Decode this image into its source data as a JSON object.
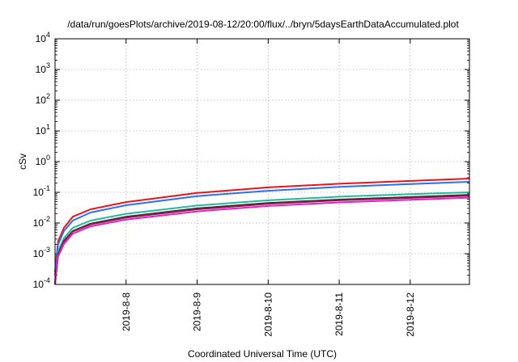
{
  "chart_data": {
    "type": "line",
    "title": "/data/run/goesPlots/archive/2019-08-12/20:00/flux/../bryn/5daysEarthDataAccumulated.plot",
    "xlabel": "Coordinated Universal Time (UTC)",
    "ylabel": "cSv",
    "y_scale": "log",
    "ylim": [
      0.0001,
      10000
    ],
    "y_ticks": [
      {
        "base": "10",
        "exp": "-4"
      },
      {
        "base": "10",
        "exp": "-3"
      },
      {
        "base": "10",
        "exp": "-2"
      },
      {
        "base": "10",
        "exp": "-1"
      },
      {
        "base": "10",
        "exp": "0"
      },
      {
        "base": "10",
        "exp": "1"
      },
      {
        "base": "10",
        "exp": "2"
      },
      {
        "base": "10",
        "exp": "3"
      },
      {
        "base": "10",
        "exp": "4"
      }
    ],
    "xlim": [
      "2019-08-07 00:00",
      "2019-08-12 20:00"
    ],
    "x_ticks": [
      "2019-8-8",
      "2019-8-9",
      "2019-8-10",
      "2019-8-11",
      "2019-8-12"
    ],
    "grid": true,
    "x": [
      "2019-08-07 00:00",
      "2019-08-07 01:00",
      "2019-08-07 03:00",
      "2019-08-07 06:00",
      "2019-08-07 12:00",
      "2019-08-08 00:00",
      "2019-08-09 00:00",
      "2019-08-10 00:00",
      "2019-08-11 00:00",
      "2019-08-12 00:00",
      "2019-08-12 20:00"
    ],
    "series": [
      {
        "color": "#e8141c",
        "values": [
          0.00025,
          0.0025,
          0.007,
          0.016,
          0.028,
          0.048,
          0.095,
          0.145,
          0.19,
          0.235,
          0.28
        ]
      },
      {
        "color": "#2f6fe8",
        "values": [
          0.0002,
          0.002,
          0.0055,
          0.012,
          0.022,
          0.038,
          0.075,
          0.112,
          0.15,
          0.185,
          0.22
        ]
      },
      {
        "color": "#22b89a",
        "values": [
          0.00012,
          0.0012,
          0.0032,
          0.007,
          0.012,
          0.02,
          0.037,
          0.055,
          0.072,
          0.087,
          0.1
        ]
      },
      {
        "color": "#2e2e2e",
        "values": [
          0.0001,
          0.00095,
          0.0026,
          0.0055,
          0.0095,
          0.016,
          0.03,
          0.045,
          0.058,
          0.07,
          0.083
        ]
      },
      {
        "color": "#8b1a4a",
        "values": [
          0.0001,
          0.0009,
          0.0025,
          0.0053,
          0.009,
          0.015,
          0.028,
          0.042,
          0.055,
          0.066,
          0.077
        ]
      },
      {
        "color": "#e020c8",
        "values": [
          0.0001,
          0.0008,
          0.0021,
          0.0045,
          0.0078,
          0.013,
          0.024,
          0.036,
          0.047,
          0.057,
          0.067
        ]
      }
    ]
  }
}
